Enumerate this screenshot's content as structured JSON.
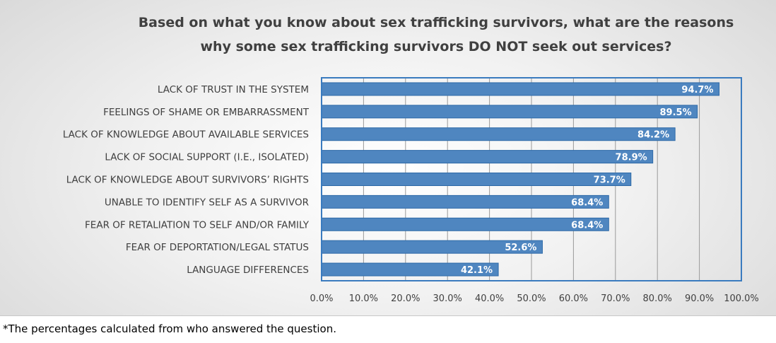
{
  "chart_data": {
    "type": "bar",
    "orientation": "horizontal",
    "title": "Based on what you know about sex trafficking survivors, what are the reasons why some sex trafficking survivors DO NOT seek out services?",
    "title_lines": [
      "Based on what you know about sex trafficking survivors, what are the reasons",
      "why some sex trafficking survivors DO NOT seek out services?"
    ],
    "categories": [
      "LACK OF TRUST IN THE SYSTEM",
      "FEELINGS OF SHAME OR EMBARRASSMENT",
      "LACK OF KNOWLEDGE ABOUT AVAILABLE SERVICES",
      "LACK OF SOCIAL SUPPORT (I.E., ISOLATED)",
      "LACK OF KNOWLEDGE ABOUT SURVIVORS’ RIGHTS",
      "UNABLE TO IDENTIFY SELF AS A SURVIVOR",
      "FEAR OF RETALIATION TO SELF AND/OR FAMILY",
      "FEAR OF DEPORTATION/LEGAL STATUS",
      "LANGUAGE DIFFERENCES"
    ],
    "values": [
      94.7,
      89.5,
      84.2,
      78.9,
      73.7,
      68.4,
      68.4,
      52.6,
      42.1
    ],
    "data_labels": [
      "94.7%",
      "89.5%",
      "84.2%",
      "78.9%",
      "73.7%",
      "68.4%",
      "68.4%",
      "52.6%",
      "42.1%"
    ],
    "x_ticks": [
      "0.0%",
      "10.0%",
      "20.0%",
      "30.0%",
      "40.0%",
      "50.0%",
      "60.0%",
      "70.0%",
      "80.0%",
      "90.0%",
      "100.0%"
    ],
    "xlim": [
      0,
      100
    ],
    "grid": true,
    "legend": "none",
    "bar_color": "#4f86c0",
    "bar_edge_color": "#2e6aa8",
    "plot_border_color": "#3a7bbf"
  },
  "footnote": "*The percentages calculated from who answered the question."
}
